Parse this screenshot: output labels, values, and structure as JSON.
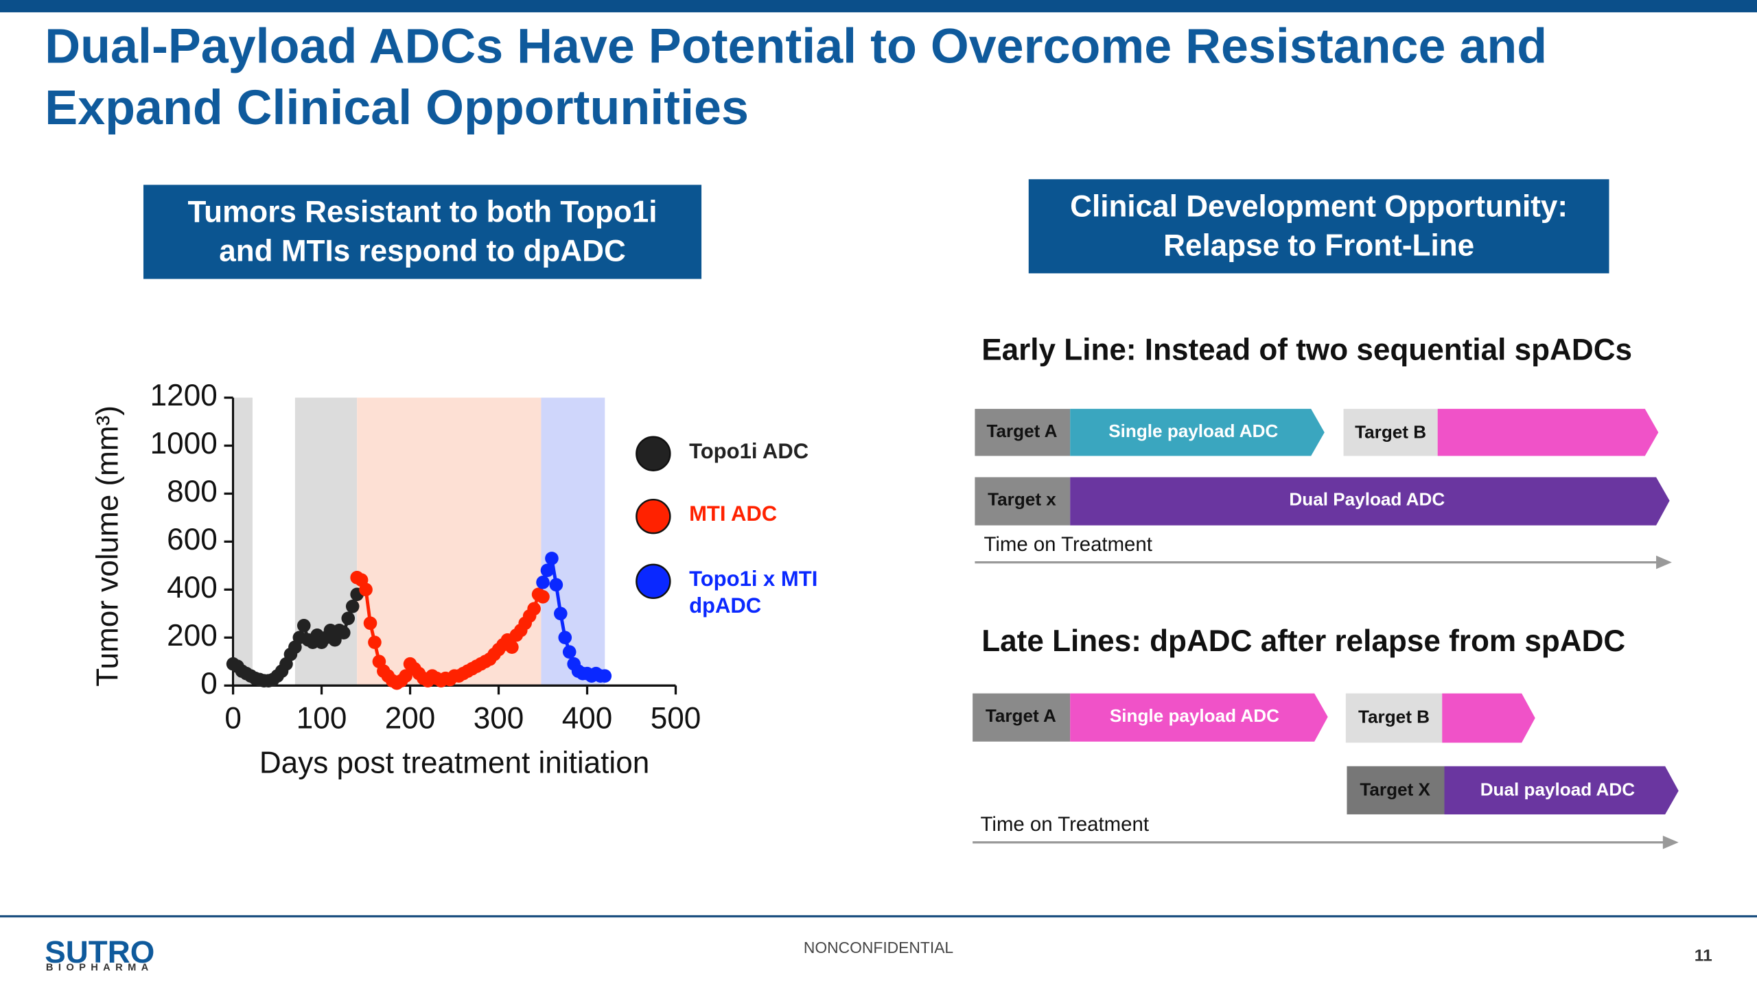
{
  "header": {
    "title_line1": "Dual-Payload ADCs Have Potential to Overcome Resistance and",
    "title_line2": "Expand Clinical Opportunities"
  },
  "left_box": {
    "line1": "Tumors Resistant to both Topo1i",
    "line2": "and MTIs respond to dpADC"
  },
  "right_box": {
    "line1": "Clinical Development Opportunity:",
    "line2": "Relapse to Front-Line"
  },
  "chart_data": {
    "type": "line",
    "x_label": "Days post treatment initiation",
    "y_label": "Tumor volume (mm³)",
    "xlim": [
      0,
      500
    ],
    "xticks": [
      0,
      100,
      200,
      300,
      400,
      500
    ],
    "ylim": [
      0,
      1200
    ],
    "yticks": [
      0,
      200,
      400,
      600,
      800,
      1000,
      1200
    ],
    "shaded_regions": [
      {
        "x_start": 2,
        "x_end": 22,
        "color": "#dcdcdc"
      },
      {
        "x_start": 70,
        "x_end": 140,
        "color": "#dcdcdc"
      },
      {
        "x_start": 140,
        "x_end": 348,
        "color": "#fde0d4"
      },
      {
        "x_start": 348,
        "x_end": 420,
        "color": "#cfd6fb"
      }
    ],
    "series": [
      {
        "name": "Topo1i ADC",
        "color": "#222222",
        "x": [
          0,
          5,
          10,
          15,
          20,
          25,
          30,
          35,
          40,
          45,
          50,
          55,
          60,
          65,
          70,
          75,
          80,
          85,
          90,
          95,
          100,
          105,
          110,
          115,
          120,
          125,
          130,
          135,
          140
        ],
        "values": [
          90,
          80,
          60,
          50,
          40,
          30,
          25,
          20,
          20,
          25,
          40,
          60,
          90,
          130,
          160,
          200,
          250,
          190,
          180,
          210,
          180,
          200,
          230,
          190,
          230,
          220,
          280,
          330,
          380
        ]
      },
      {
        "name": "MTI ADC",
        "color": "#ff2200",
        "x": [
          140,
          145,
          150,
          155,
          160,
          165,
          170,
          175,
          180,
          185,
          190,
          195,
          200,
          205,
          210,
          215,
          220,
          225,
          230,
          235,
          240,
          245,
          250,
          255,
          260,
          265,
          270,
          275,
          280,
          285,
          290,
          295,
          300,
          305,
          310,
          315,
          320,
          325,
          330,
          335,
          340,
          345,
          350
        ],
        "values": [
          450,
          440,
          400,
          260,
          180,
          100,
          60,
          40,
          20,
          10,
          20,
          40,
          90,
          70,
          50,
          30,
          20,
          40,
          30,
          20,
          30,
          25,
          40,
          40,
          50,
          60,
          70,
          80,
          90,
          100,
          110,
          130,
          150,
          170,
          190,
          160,
          210,
          230,
          260,
          290,
          320,
          380,
          370
        ]
      },
      {
        "name": "Topo1i x MTI dpADC",
        "color": "#0a28ff",
        "x": [
          350,
          355,
          360,
          365,
          370,
          375,
          380,
          385,
          390,
          395,
          400,
          405,
          410,
          415,
          420
        ],
        "values": [
          430,
          480,
          530,
          420,
          300,
          200,
          140,
          90,
          60,
          50,
          50,
          40,
          50,
          40,
          40
        ]
      }
    ]
  },
  "early_line": {
    "heading": "Early Line: Instead of two sequential spADCs",
    "row1": [
      "Target A",
      "Single payload ADC",
      "Target B"
    ],
    "row2": [
      "Target x",
      "Dual Payload ADC"
    ],
    "axis_label": "Time on Treatment"
  },
  "late_lines": {
    "heading": "Late Lines: dpADC after relapse from spADC",
    "row1": [
      "Target A",
      "Single payload ADC",
      "Target B"
    ],
    "row2": [
      "Target X",
      "Dual payload ADC"
    ],
    "axis_label": "Time on Treatment"
  },
  "footer": {
    "logo": "SUTRO",
    "logo_sub": "BIOPHARMA",
    "classification": "NONCONFIDENTIAL",
    "page_number": "11"
  }
}
